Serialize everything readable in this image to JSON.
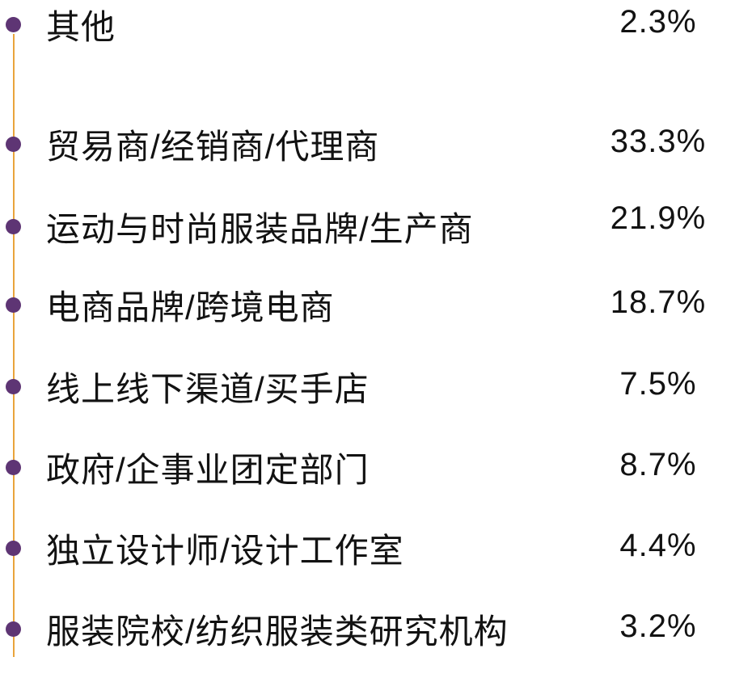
{
  "colors": {
    "timeline_line": "#E9A43C",
    "bullet": "#5E3574",
    "text": "#121212",
    "background": "#FFFFFF"
  },
  "chart_data": {
    "type": "table",
    "title": "",
    "unit": "%",
    "categories": [
      "贸易商/经销商/代理商",
      "运动与时尚服装品牌/生产商",
      "电商品牌/跨境电商",
      "线上线下渠道/买手店",
      "政府/企事业团定部门",
      "独立设计师/设计工作室",
      "服装院校/纺织服装类研究机构",
      "其他"
    ],
    "values": [
      33.3,
      21.9,
      18.7,
      7.5,
      8.7,
      4.4,
      3.2,
      2.3
    ],
    "value_labels": [
      "33.3%",
      "21.9%",
      "18.7%",
      "7.5%",
      "8.7%",
      "4.4%",
      "3.2%",
      "2.3%"
    ],
    "legend_position": "none",
    "grid": false
  }
}
